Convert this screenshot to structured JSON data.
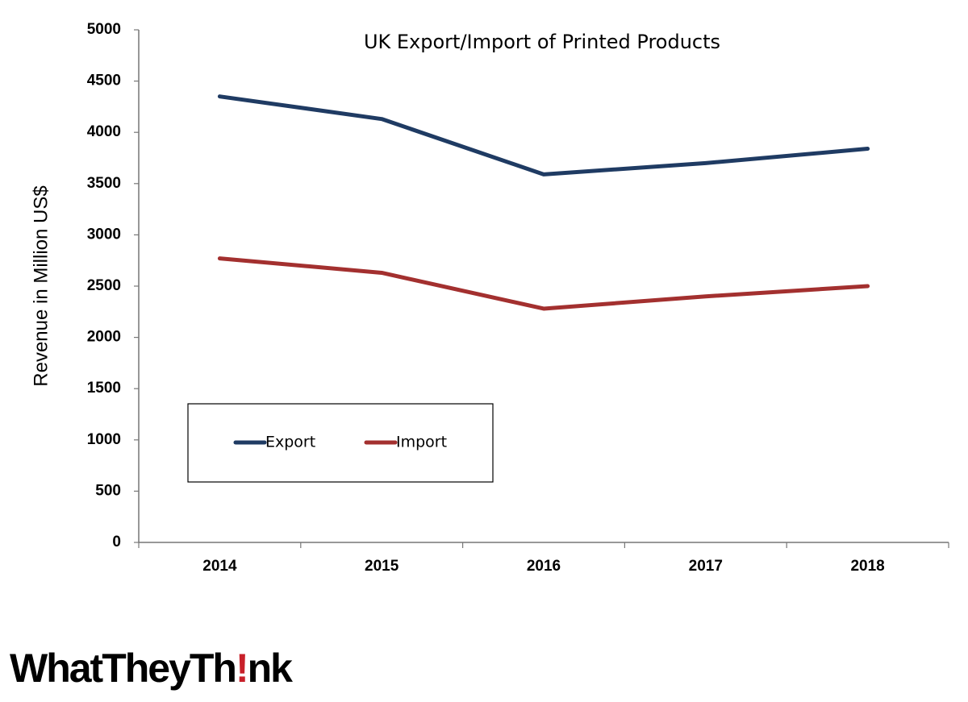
{
  "chart_data": {
    "type": "line",
    "title": "UK Export/Import of Printed Products",
    "y_label": "Revenue in Million US$",
    "categories": [
      "2014",
      "2015",
      "2016",
      "2017",
      "2018"
    ],
    "series": [
      {
        "name": "Export",
        "color": "#1f3b63",
        "values": [
          4350,
          4130,
          3590,
          3700,
          3840
        ]
      },
      {
        "name": "Import",
        "color": "#a3302f",
        "values": [
          2770,
          2630,
          2280,
          2400,
          2500
        ]
      }
    ],
    "ylim": [
      0,
      5000
    ],
    "yticks": [
      0,
      500,
      1000,
      1500,
      2000,
      2500,
      3000,
      3500,
      4000,
      4500,
      5000
    ],
    "grid": false,
    "legend": "lower left"
  },
  "logo": {
    "before": "WhatTheyTh",
    "mark": "!",
    "after": "nk"
  }
}
